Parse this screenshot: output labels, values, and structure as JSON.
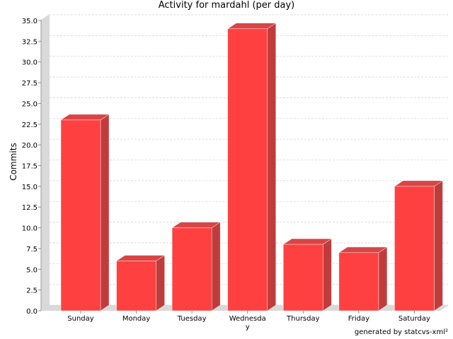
{
  "chart_data": {
    "type": "bar",
    "title": "Activity for mardahl (per day)",
    "xlabel": "",
    "ylabel": "Commits",
    "categories": [
      "Sunday",
      "Monday",
      "Tuesday",
      "Wednesday",
      "Thursday",
      "Friday",
      "Saturday"
    ],
    "category_display": [
      [
        "Sunday"
      ],
      [
        "Monday"
      ],
      [
        "Tuesday"
      ],
      [
        "Wednesda",
        "y"
      ],
      [
        "Thursday"
      ],
      [
        "Friday"
      ],
      [
        "Saturday"
      ]
    ],
    "values": [
      23,
      6,
      10,
      34,
      8,
      7,
      15
    ],
    "ylim": [
      0,
      35
    ],
    "yticks": [
      "0.0",
      "2.5",
      "5.0",
      "7.5",
      "10.0",
      "12.5",
      "15.0",
      "17.5",
      "20.0",
      "22.5",
      "25.0",
      "27.5",
      "30.0",
      "32.5",
      "35.0"
    ],
    "grid": true,
    "style": "3d",
    "colors": {
      "bar_front": "#ff4040",
      "bar_side": "#c03c3c",
      "bar_top": "#d94545",
      "wall": "#d9d9d9",
      "grid": "#d6d6d6"
    }
  },
  "footer": "generated by statcvs-xml²"
}
